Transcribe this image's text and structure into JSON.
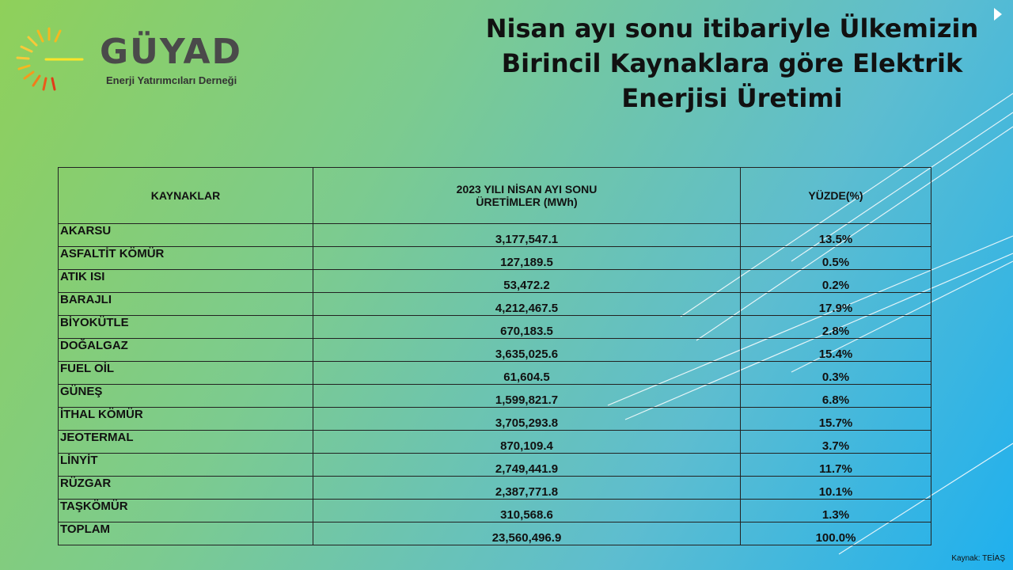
{
  "logo": {
    "name": "GÜYAD",
    "subtitle": "Enerji Yatırımcıları Derneği"
  },
  "title_lines": [
    "Nisan ayı sonu itibariyle Ülkemizin",
    "Birincil Kaynaklara göre Elektrik",
    "Enerjisi Üretimi"
  ],
  "table": {
    "headers": {
      "source": "KAYNAKLAR",
      "production_line1": "2023 YILI NİSAN AYI SONU",
      "production_line2": "ÜRETİMLER (MWh)",
      "percent": "YÜZDE(%)"
    },
    "rows": [
      {
        "source": "AKARSU",
        "production": "3,177,547.1",
        "percent": "13.5%"
      },
      {
        "source": "ASFALTİT KÖMÜR",
        "production": "127,189.5",
        "percent": "0.5%"
      },
      {
        "source": "ATIK ISI",
        "production": "53,472.2",
        "percent": "0.2%"
      },
      {
        "source": "BARAJLI",
        "production": "4,212,467.5",
        "percent": "17.9%"
      },
      {
        "source": "BİYOKÜTLE",
        "production": "670,183.5",
        "percent": "2.8%"
      },
      {
        "source": "DOĞALGAZ",
        "production": "3,635,025.6",
        "percent": "15.4%"
      },
      {
        "source": "FUEL OİL",
        "production": "61,604.5",
        "percent": "0.3%"
      },
      {
        "source": "GÜNEŞ",
        "production": "1,599,821.7",
        "percent": "6.8%"
      },
      {
        "source": "İTHAL KÖMÜR",
        "production": "3,705,293.8",
        "percent": "15.7%"
      },
      {
        "source": "JEOTERMAL",
        "production": "870,109.4",
        "percent": "3.7%"
      },
      {
        "source": "LİNYİT",
        "production": "2,749,441.9",
        "percent": "11.7%"
      },
      {
        "source": "RÜZGAR",
        "production": "2,387,771.8",
        "percent": "10.1%"
      },
      {
        "source": "TAŞKÖMÜR",
        "production": "310,568.6",
        "percent": "1.3%"
      },
      {
        "source": "TOPLAM",
        "production": "23,560,496.9",
        "percent": "100.0%"
      }
    ]
  },
  "source_note": "Kaynak: TEİAŞ",
  "colors": {
    "background_start": "#8fd05a",
    "background_end": "#1fb0ee",
    "logo_text": "#4a4a4a",
    "logo_rays": "#f5b820"
  }
}
